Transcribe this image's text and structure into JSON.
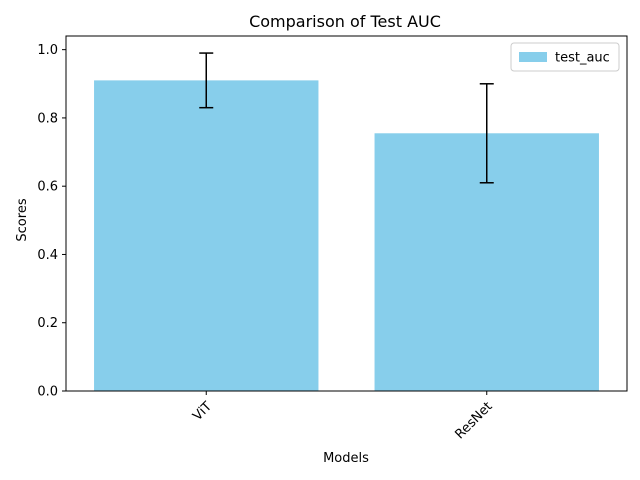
{
  "chart_data": {
    "type": "bar",
    "title": "Comparison of Test AUC",
    "xlabel": "Models",
    "ylabel": "Scores",
    "categories": [
      "ViT",
      "ResNet"
    ],
    "series": [
      {
        "name": "test_auc",
        "values": [
          0.91,
          0.755
        ],
        "errors": [
          0.08,
          0.145
        ],
        "color": "#87CEEB"
      }
    ],
    "ylim": [
      0,
      1.04
    ],
    "yticks": [
      0.0,
      0.2,
      0.4,
      0.6,
      0.8,
      1.0
    ],
    "ytick_labels": [
      "0.0",
      "0.2",
      "0.4",
      "0.6",
      "0.8",
      "1.0"
    ],
    "xtick_rotation": 45,
    "grid": false,
    "legend": {
      "placement": "upper-right",
      "entries": [
        "test_auc"
      ]
    }
  }
}
